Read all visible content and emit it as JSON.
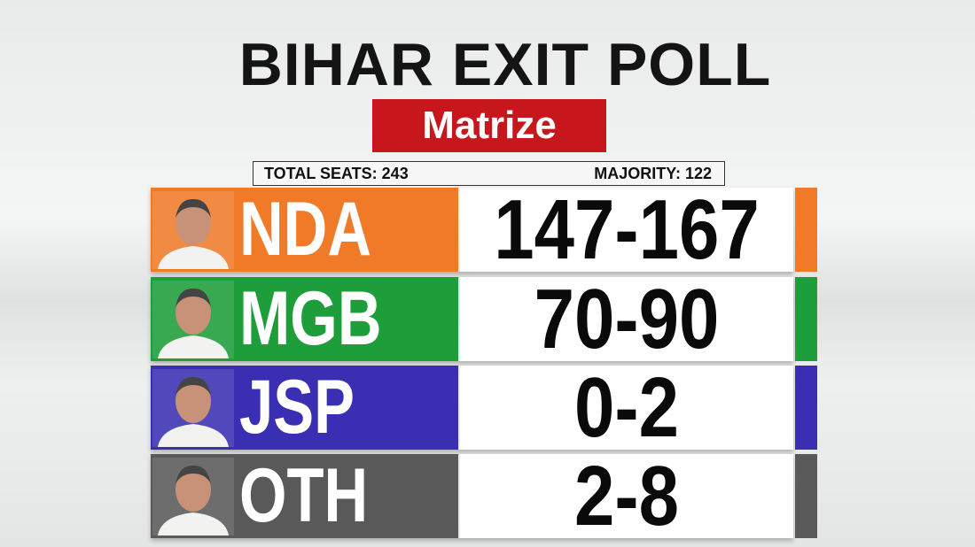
{
  "title": "BIHAR EXIT POLL",
  "source": "Matrize",
  "total_seats": "TOTAL SEATS: 243",
  "majority": "MAJORITY: 122",
  "rows": [
    {
      "party": "NDA",
      "range": "147-167",
      "color": "#f07a28"
    },
    {
      "party": "MGB",
      "range": "70-90",
      "color": "#1e9e3a"
    },
    {
      "party": "JSP",
      "range": "0-2",
      "color": "#3a2fb2"
    },
    {
      "party": "OTH",
      "range": "2-8",
      "color": "#595959"
    }
  ]
}
